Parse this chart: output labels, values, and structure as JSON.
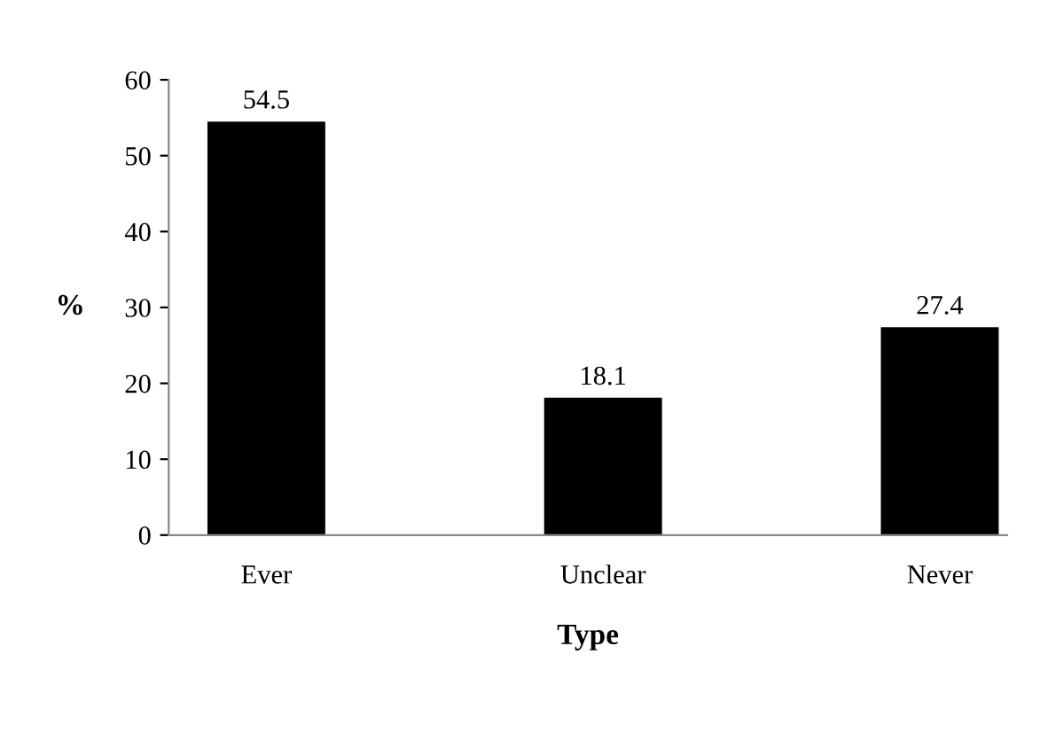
{
  "chart_data": {
    "type": "bar",
    "xlabel": "Type",
    "ylabel": "%",
    "categories": [
      "Ever",
      "Unclear",
      "Never"
    ],
    "values": [
      54.5,
      18.1,
      27.4
    ],
    "color": "#000000",
    "ylim": [
      0,
      60
    ],
    "yticks": [
      0,
      10,
      20,
      30,
      40,
      50,
      60
    ],
    "grid": false,
    "data_labels": true
  }
}
